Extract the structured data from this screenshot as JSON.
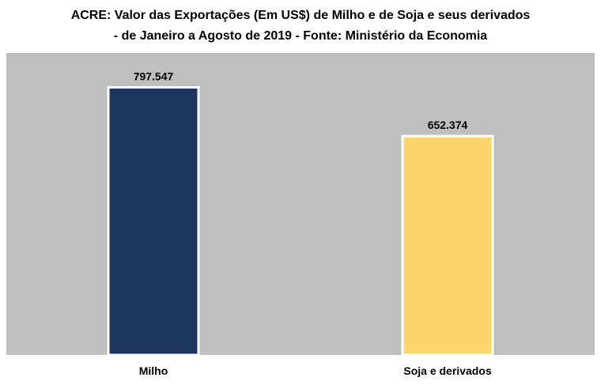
{
  "chart_data": {
    "type": "bar",
    "title": "ACRE: Valor das Exportações (Em US$) de Milho e de Soja e seus derivados",
    "subtitle": "- de Janeiro a Agosto de 2019  - Fonte: Ministério da Economia",
    "categories": [
      "Milho",
      "Soja e derivados"
    ],
    "values": [
      797547,
      652374
    ],
    "value_labels": [
      "797.547",
      "652.374"
    ],
    "bar_colors": [
      "#1f365f",
      "#fdd56d"
    ],
    "plot_background": "#bfbfbf",
    "ylim": [
      0,
      900000
    ],
    "grid": false,
    "legend": "none",
    "xlabel": "",
    "ylabel": ""
  }
}
